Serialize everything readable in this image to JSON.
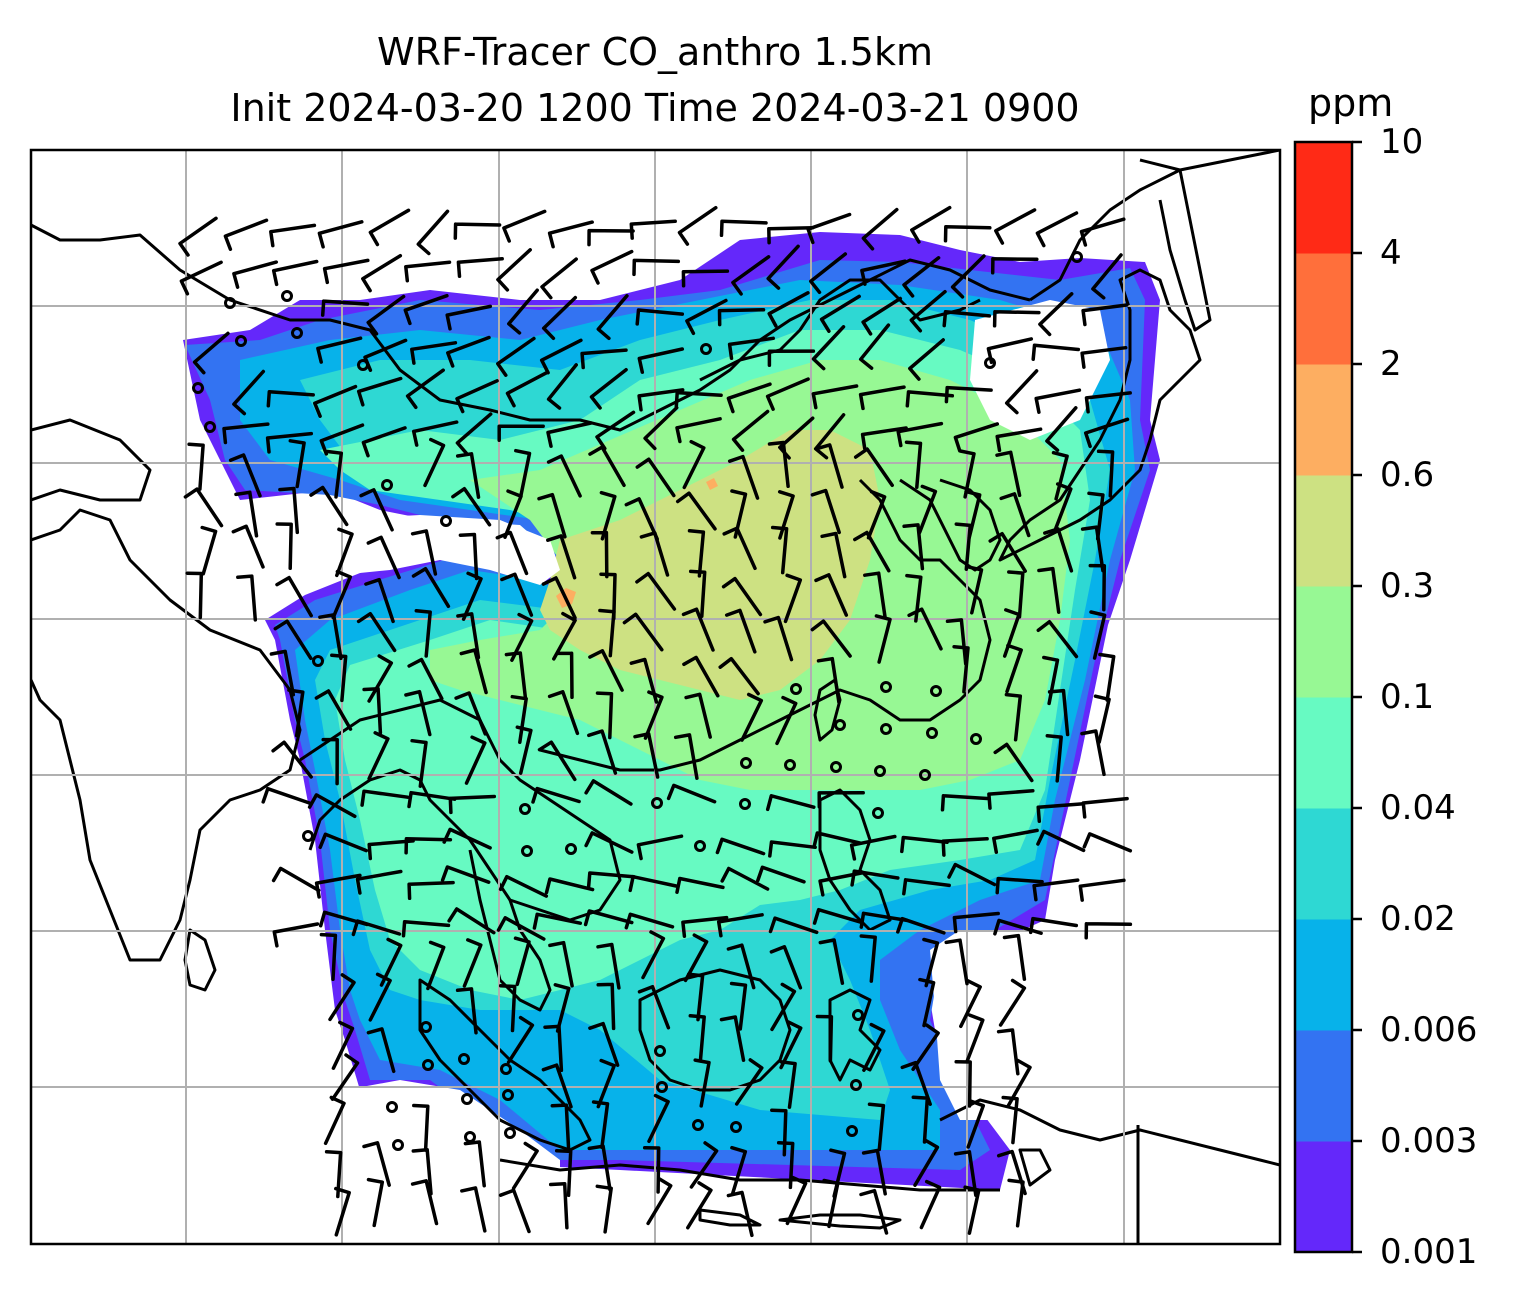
{
  "title": {
    "line1": "WRF-Tracer CO_anthro 1.5km",
    "line2": "Init 2024-03-20 1200 Time 2024-03-21 0900"
  },
  "colorbar": {
    "units": "ppm",
    "tick_labels": [
      "0.001",
      "0.003",
      "0.006",
      "0.02",
      "0.04",
      "0.1",
      "0.3",
      "0.6",
      "2",
      "4",
      "10"
    ],
    "colors": [
      "#6428fa",
      "#3373f2",
      "#07b2ea",
      "#2ed8d3",
      "#67fac2",
      "#97f894",
      "#cde182",
      "#fdae61",
      "#ff6f3b",
      "#ff2a16"
    ]
  },
  "map": {
    "land_border_color": "#000000",
    "gridline_color": "#b0b0b0",
    "wind_barb_color": "#000000",
    "field": "CO_anthro tracer concentration at 1.5km",
    "no_data_color": "#ffffff"
  }
}
